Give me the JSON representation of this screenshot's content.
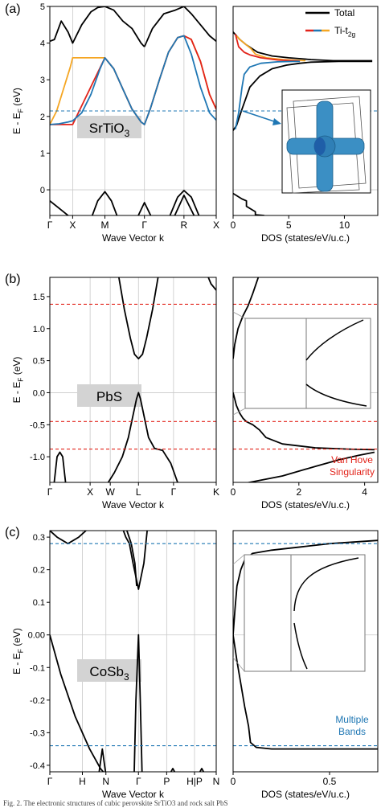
{
  "caption": "Fig. 2. The electronic structures of cubic perovskite SrTiO3 and rock salt PbS",
  "colors": {
    "total": "#000000",
    "red": "#e2231a",
    "blue": "#1f77b4",
    "orange": "#f5a623",
    "label_box": "#d3d3d3",
    "grid": "#c8c8c8",
    "iso": "#3b8fc4"
  },
  "chart_data": [
    {
      "type": "line",
      "panel": "(a)",
      "material_label": "SrTiO",
      "material_sub": "3",
      "band": {
        "xlabel": "Wave Vector k",
        "ylabel": "E - E",
        "ylabel_sub": "F",
        "ylabel_unit": " (eV)",
        "ylim": [
          -0.7,
          5.0
        ],
        "yticks": [
          "0",
          "1",
          "2",
          "3",
          "4",
          "5"
        ],
        "ytick_values": [
          0,
          1,
          2,
          3,
          4,
          5
        ],
        "kpoints": [
          "Γ",
          "X",
          "M",
          "Γ",
          "R",
          "X"
        ],
        "kpos": [
          0,
          0.5,
          1.207,
          2.073,
          2.939,
          3.646
        ],
        "dashed_lines": [
          {
            "y": 2.15,
            "color": "blue"
          }
        ],
        "series": [
          {
            "color": "black",
            "x": [
              0,
              0.1,
              0.25,
              0.4,
              0.5,
              0.7,
              0.9,
              1.05,
              1.207,
              1.4,
              1.6,
              1.8,
              2.0,
              2.073
            ],
            "y": [
              4.05,
              4.1,
              4.6,
              4.3,
              4.0,
              4.5,
              4.85,
              4.97,
              5.0,
              4.9,
              4.6,
              4.4,
              4.0,
              3.9
            ]
          },
          {
            "color": "black",
            "x": [
              2.073,
              2.25,
              2.5,
              2.75,
              2.939,
              3.1,
              3.3,
              3.5,
              3.646
            ],
            "y": [
              3.9,
              4.4,
              4.8,
              4.9,
              5.0,
              4.8,
              4.5,
              4.2,
              4.05
            ]
          },
          {
            "color": "orange",
            "x": [
              0,
              0.15,
              0.3,
              0.45,
              0.5,
              1.207,
              1.4,
              1.6,
              1.8,
              2.0,
              2.073,
              2.2,
              2.4,
              2.6,
              2.8,
              2.939,
              3.1,
              3.3,
              3.5,
              3.646
            ],
            "y": [
              1.78,
              2.15,
              2.75,
              3.35,
              3.6,
              3.6,
              3.3,
              2.75,
              2.2,
              1.85,
              1.78,
              2.2,
              3.0,
              3.75,
              4.15,
              4.2,
              4.1,
              3.5,
              2.6,
              2.2
            ]
          },
          {
            "color": "red",
            "x": [
              0,
              0.5,
              1.207,
              1.4,
              1.6,
              1.8,
              2.0,
              2.073,
              2.2,
              2.4,
              2.6,
              2.8,
              2.939,
              3.1,
              3.3,
              3.5,
              3.646
            ],
            "y": [
              1.78,
              1.78,
              3.6,
              3.3,
              2.75,
              2.2,
              1.85,
              1.78,
              2.2,
              3.0,
              3.75,
              4.15,
              4.2,
              4.1,
              3.5,
              2.6,
              2.2
            ]
          },
          {
            "color": "blue",
            "x": [
              0,
              0.2,
              0.4,
              0.5,
              0.7,
              0.9,
              1.1,
              1.207,
              1.4,
              1.6,
              1.8,
              2.0,
              2.073,
              2.2,
              2.4,
              2.6,
              2.8,
              2.939,
              3.1,
              3.3,
              3.5,
              3.646
            ],
            "y": [
              1.78,
              1.8,
              1.85,
              1.88,
              2.1,
              2.6,
              3.3,
              3.6,
              3.3,
              2.75,
              2.2,
              1.85,
              1.78,
              2.2,
              3.0,
              3.75,
              4.15,
              4.2,
              3.7,
              2.8,
              2.1,
              1.9
            ]
          },
          {
            "color": "black",
            "x": [
              0,
              0.25,
              0.5
            ],
            "y": [
              -0.3,
              -0.55,
              -0.8
            ]
          },
          {
            "color": "black",
            "x": [
              0.9,
              1.05,
              1.207,
              1.35,
              1.5
            ],
            "y": [
              -0.8,
              -0.3,
              -0.05,
              -0.3,
              -0.8
            ]
          },
          {
            "color": "black",
            "x": [
              1.9,
              2.073,
              2.25
            ],
            "y": [
              -0.8,
              -0.35,
              -0.8
            ]
          },
          {
            "color": "black",
            "x": [
              2.6,
              2.8,
              2.939,
              3.1,
              3.3
            ],
            "y": [
              -0.8,
              -0.2,
              -0.02,
              -0.2,
              -0.8
            ]
          },
          {
            "color": "black",
            "x": [
              2.7,
              2.939,
              3.2
            ],
            "y": [
              -0.8,
              -0.15,
              -0.8
            ]
          }
        ]
      },
      "dos": {
        "xlabel": "DOS (states/eV/u.c.)",
        "xlim": [
          0,
          13
        ],
        "xticks": [
          "0",
          "5",
          "10"
        ],
        "xtick_values": [
          0,
          5,
          10
        ],
        "dashed_lines": [
          {
            "y": 2.15,
            "color": "blue"
          }
        ],
        "series": [
          {
            "color": "black",
            "x": [
              0,
              0.3,
              0.8,
              1.5,
              2.4,
              3.5,
              4.8,
              6.0,
              7.0,
              8.2,
              9.5,
              11.0,
              12.5
            ],
            "y": [
              1.62,
              1.75,
              2.2,
              2.8,
              3.1,
              3.3,
              3.4,
              3.45,
              3.48,
              3.49,
              3.5,
              3.5,
              3.5
            ]
          },
          {
            "color": "black",
            "x": [
              12.5,
              11.0,
              9.0,
              7.0,
              5.0,
              3.5,
              2.2,
              1.2,
              0.6,
              0.3,
              0
            ],
            "y": [
              3.52,
              3.52,
              3.52,
              3.55,
              3.6,
              3.65,
              3.75,
              3.95,
              4.1,
              4.2,
              4.3
            ]
          },
          {
            "color": "orange",
            "x": [
              0.3,
              0.6,
              1.2,
              1.6,
              2.0,
              3.0,
              4.5,
              6.5
            ],
            "y": [
              4.2,
              4.1,
              3.95,
              3.85,
              3.7,
              3.6,
              3.55,
              3.52
            ]
          },
          {
            "color": "red",
            "x": [
              0.2,
              0.5,
              1.0,
              1.5,
              2.5,
              4.0,
              6.0
            ],
            "y": [
              4.25,
              3.9,
              3.75,
              3.68,
              3.6,
              3.54,
              3.51
            ]
          },
          {
            "color": "blue",
            "x": [
              0.2,
              0.5,
              0.8,
              1.0,
              1.5,
              2.5,
              4.0,
              5.5,
              6.0
            ],
            "y": [
              1.65,
              2.1,
              2.8,
              3.15,
              3.35,
              3.45,
              3.49,
              3.5,
              3.5
            ]
          },
          {
            "color": "black",
            "x": [
              0,
              0.8,
              1.2,
              1.2,
              2.0,
              2.0,
              2.8
            ],
            "y": [
              -0.1,
              -0.25,
              -0.3,
              -0.45,
              -0.6,
              -0.68,
              -0.7
            ]
          }
        ],
        "legend": [
          {
            "label": "Total",
            "color": "black"
          },
          {
            "label": "Ti-t",
            "sub": "2g",
            "colors": [
              "red",
              "blue",
              "orange"
            ]
          }
        ]
      }
    },
    {
      "type": "line",
      "panel": "(b)",
      "material_label": "PbS",
      "material_sub": "",
      "band": {
        "xlabel": "Wave Vector k",
        "ylabel": "E - E",
        "ylabel_sub": "F",
        "ylabel_unit": " (eV)",
        "ylim": [
          -1.4,
          1.8
        ],
        "yticks": [
          "-1.0",
          "-0.5",
          "0.0",
          "0.5",
          "1.0",
          "1.5"
        ],
        "ytick_values": [
          -1.0,
          -0.5,
          0.0,
          0.5,
          1.0,
          1.5
        ],
        "kpoints": [
          "Γ",
          "X",
          "W",
          "L",
          "Γ",
          "K"
        ],
        "kpos": [
          0,
          1.0,
          1.5,
          2.2,
          3.07,
          4.13
        ],
        "dashed_lines": [
          {
            "y": 1.38,
            "color": "red"
          },
          {
            "y": -0.45,
            "color": "red"
          },
          {
            "y": -0.88,
            "color": "red"
          }
        ],
        "series": [
          {
            "color": "black",
            "x": [
              0.1,
              0.18,
              0.25,
              0.32,
              0.4
            ],
            "y": [
              -1.45,
              -1.0,
              -0.93,
              -1.0,
              -1.45
            ]
          },
          {
            "color": "black",
            "x": [
              1.7,
              1.85,
              2.0,
              2.1,
              2.2,
              2.3,
              2.4,
              2.55,
              2.7
            ],
            "y": [
              1.85,
              1.3,
              0.85,
              0.6,
              0.53,
              0.6,
              0.85,
              1.3,
              1.85
            ]
          },
          {
            "color": "black",
            "x": [
              1.4,
              1.6,
              1.8,
              1.95,
              2.05,
              2.15,
              2.2,
              2.25,
              2.35,
              2.45,
              2.6,
              2.8,
              3.0,
              3.2
            ],
            "y": [
              -1.45,
              -1.25,
              -1.0,
              -0.7,
              -0.4,
              -0.1,
              0.0,
              -0.1,
              -0.4,
              -0.7,
              -0.87,
              -0.9,
              -1.1,
              -1.45
            ]
          },
          {
            "color": "black",
            "x": [
              3.9,
              4.0,
              4.13
            ],
            "y": [
              1.85,
              1.7,
              1.6
            ]
          }
        ]
      },
      "dos": {
        "xlabel": "DOS (states/eV/u.c.)",
        "xlim": [
          0,
          4.4
        ],
        "xticks": [
          "0",
          "2",
          "4"
        ],
        "xtick_values": [
          0,
          2,
          4
        ],
        "dashed_lines": [
          {
            "y": 1.38,
            "color": "red"
          },
          {
            "y": -0.45,
            "color": "red"
          },
          {
            "y": -0.88,
            "color": "red"
          }
        ],
        "annotation": [
          "Van Hove",
          "Singularity"
        ],
        "series": [
          {
            "color": "black",
            "x": [
              0,
              0.05,
              0.15,
              0.3,
              0.45,
              0.6,
              0.8
            ],
            "y": [
              0.53,
              0.75,
              1.0,
              1.2,
              1.35,
              1.55,
              1.85
            ]
          },
          {
            "color": "black",
            "x": [
              0,
              0.1,
              0.2,
              0.3,
              0.4,
              0.6,
              0.8,
              1.0,
              1.5,
              2.5,
              3.5,
              4.3
            ],
            "y": [
              0.0,
              -0.2,
              -0.32,
              -0.4,
              -0.45,
              -0.5,
              -0.58,
              -0.7,
              -0.8,
              -0.86,
              -0.88,
              -0.89
            ]
          },
          {
            "color": "black",
            "x": [
              0,
              1.5,
              2.5,
              3.2,
              3.8,
              4.3
            ],
            "y": [
              -1.45,
              -1.3,
              -1.15,
              -1.05,
              -0.98,
              -0.93
            ]
          }
        ]
      }
    },
    {
      "type": "line",
      "panel": "(c)",
      "material_label": "CoSb",
      "material_sub": "3",
      "band": {
        "xlabel": "Wave Vector k",
        "ylabel": "E - E",
        "ylabel_sub": "F",
        "ylabel_unit": " (eV)",
        "ylim": [
          -0.42,
          0.32
        ],
        "yticks": [
          "-0.4",
          "-0.3",
          "-0.2",
          "-0.1",
          "0.00",
          "0.1",
          "0.2",
          "0.3"
        ],
        "ytick_values": [
          -0.4,
          -0.3,
          -0.2,
          -0.1,
          0.0,
          0.1,
          0.2,
          0.3
        ],
        "kpoints": [
          "Γ",
          "H",
          "N",
          "Γ",
          "P",
          "H|P",
          "N"
        ],
        "kpos": [
          0,
          0.9,
          1.55,
          2.45,
          3.23,
          4.0,
          4.6
        ],
        "dashed_lines": [
          {
            "y": 0.28,
            "color": "blue"
          },
          {
            "y": -0.34,
            "color": "blue"
          }
        ],
        "series": [
          {
            "color": "black",
            "x": [
              0,
              0.2,
              0.5,
              0.8,
              1.0
            ],
            "y": [
              0.32,
              0.3,
              0.28,
              0.3,
              0.32
            ]
          },
          {
            "color": "black",
            "x": [
              2.0,
              2.1,
              2.2,
              2.3,
              2.45,
              2.6,
              2.7
            ],
            "y": [
              0.33,
              0.3,
              0.28,
              0.22,
              0.14,
              0.22,
              0.33
            ]
          },
          {
            "color": "black",
            "x": [
              2.1,
              2.25,
              2.35,
              2.4
            ],
            "y": [
              0.33,
              0.28,
              0.22,
              0.15
            ]
          },
          {
            "color": "black",
            "x": [
              0,
              0.3,
              0.7,
              1.1,
              1.4,
              1.55
            ],
            "y": [
              0.0,
              -0.12,
              -0.25,
              -0.35,
              -0.41,
              -0.43
            ]
          },
          {
            "color": "black",
            "x": [
              2.33,
              2.38,
              2.45,
              2.5,
              2.55
            ],
            "y": [
              -0.43,
              -0.2,
              0.0,
              -0.2,
              -0.43
            ]
          },
          {
            "color": "black",
            "x": [
              1.35,
              1.45,
              1.55
            ],
            "y": [
              -0.43,
              -0.35,
              -0.43
            ]
          },
          {
            "color": "black",
            "x": [
              3.3,
              3.4,
              3.5
            ],
            "y": [
              -0.43,
              -0.41,
              -0.43
            ]
          },
          {
            "color": "black",
            "x": [
              4.1,
              4.2,
              4.3
            ],
            "y": [
              -0.43,
              -0.41,
              -0.43
            ]
          }
        ]
      },
      "dos": {
        "xlabel": "DOS (states/eV/u.c.)",
        "xlim": [
          0,
          0.75
        ],
        "xticks": [
          "0",
          "0.5"
        ],
        "xtick_values": [
          0,
          0.5
        ],
        "dashed_lines": [
          {
            "y": 0.28,
            "color": "blue"
          },
          {
            "y": -0.34,
            "color": "blue"
          }
        ],
        "annotation": [
          "Multiple",
          "Bands"
        ],
        "series": [
          {
            "color": "black",
            "x": [
              0,
              0.01,
              0.02,
              0.04,
              0.06,
              0.1,
              0.2,
              0.35,
              0.5,
              0.75
            ],
            "y": [
              0.0,
              0.08,
              0.15,
              0.2,
              0.23,
              0.25,
              0.26,
              0.27,
              0.28,
              0.29
            ]
          },
          {
            "color": "black",
            "x": [
              0,
              0.02,
              0.04,
              0.06,
              0.08,
              0.09,
              0.12,
              0.2,
              0.35,
              0.5,
              0.75
            ],
            "y": [
              0.0,
              -0.08,
              -0.15,
              -0.22,
              -0.28,
              -0.33,
              -0.345,
              -0.35,
              -0.35,
              -0.35,
              -0.35
            ]
          }
        ]
      }
    }
  ]
}
